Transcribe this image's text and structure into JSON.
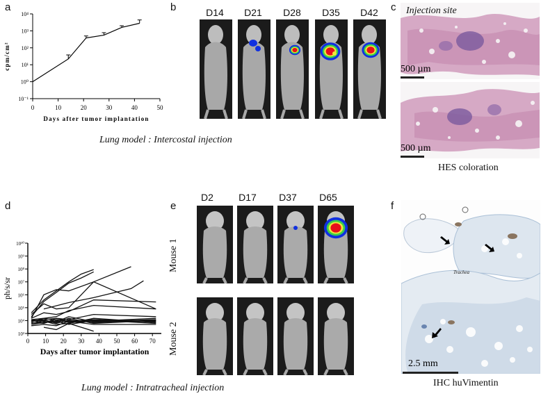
{
  "panels": {
    "a": "a",
    "b": "b",
    "c": "c",
    "d": "d",
    "e": "e",
    "f": "f"
  },
  "captions": {
    "top": "Lung model : Intercostal injection",
    "bottom": "Lung model : Intratracheal injection"
  },
  "panel_b": {
    "days": [
      "D14",
      "D21",
      "D28",
      "D35",
      "D42"
    ]
  },
  "panel_c": {
    "injection_site": "Injection site",
    "scale_top": "500 µm",
    "scale_bottom": "500 µm",
    "stain": "HES coloration"
  },
  "panel_e": {
    "days": [
      "D2",
      "D17",
      "D37",
      "D65"
    ],
    "rows": [
      "Mouse 1",
      "Mouse 2"
    ]
  },
  "panel_f": {
    "trachea": "Trachea",
    "scale": "2.5 mm",
    "stain": "IHC huVimentin"
  },
  "colors": {
    "bio_red": "#e8101a",
    "bio_yellow": "#f1e53a",
    "bio_green": "#3ad04a",
    "bio_blue": "#1030e0",
    "hes_pink": "#c78fb2",
    "hes_purple": "#7b5a9e",
    "ihc_blue": "#a9bfd6"
  },
  "chart_data": [
    {
      "id": "a",
      "type": "line",
      "xlabel": "Days after tumor implantation",
      "ylabel": "cpm/cm²",
      "xlim": [
        0,
        50
      ],
      "ylim_log10": [
        -1,
        4
      ],
      "yscale": "log",
      "xticks": [
        "0",
        "10",
        "20",
        "30",
        "40",
        "50"
      ],
      "yticks": [
        "10⁻¹",
        "10⁰",
        "10¹",
        "10²",
        "10³",
        "10⁴"
      ],
      "x": [
        0,
        14,
        21,
        28,
        35,
        42
      ],
      "y": [
        1,
        22,
        380,
        560,
        1600,
        2800
      ],
      "err_upper": [
        1,
        38,
        500,
        780,
        2000,
        4400
      ]
    },
    {
      "id": "d",
      "type": "line",
      "xlabel": "Days after tumor implantation",
      "ylabel": "ph/s/sr",
      "xlim": [
        0,
        75
      ],
      "ylim_log10": [
        3,
        10
      ],
      "yscale": "log",
      "xticks": [
        "0",
        "10",
        "20",
        "30",
        "40",
        "50",
        "60",
        "70"
      ],
      "yticks": [
        "10³",
        "10⁴",
        "10⁵",
        "10⁶",
        "10⁷",
        "10⁸",
        "10⁹",
        "10¹⁰"
      ],
      "series": [
        {
          "x": [
            2,
            9,
            16,
            23,
            30,
            37
          ],
          "y": [
            40000,
            400000,
            2000000,
            10000000,
            40000000,
            90000000
          ]
        },
        {
          "x": [
            2,
            9,
            16,
            23,
            30,
            37
          ],
          "y": [
            20000,
            300000,
            1500000,
            8000000,
            20000000,
            60000000
          ]
        },
        {
          "x": [
            2,
            9,
            16,
            23,
            37,
            58
          ],
          "y": [
            15000,
            1000000,
            2500000,
            2000000,
            10000000,
            150000000
          ]
        },
        {
          "x": [
            9,
            23,
            37,
            58,
            65
          ],
          "y": [
            80000,
            250000,
            600000,
            3000000,
            12000000
          ]
        },
        {
          "x": [
            2,
            9,
            16,
            23,
            37,
            72
          ],
          "y": [
            30000,
            200000,
            80000,
            100000,
            10000000,
            80000
          ]
        },
        {
          "x": [
            2,
            9,
            16,
            23,
            37,
            72
          ],
          "y": [
            15000,
            40000,
            30000,
            50000,
            400000,
            280000
          ]
        },
        {
          "x": [
            2,
            9,
            16,
            23,
            37,
            72
          ],
          "y": [
            12000,
            15000,
            20000,
            60000,
            150000,
            80000
          ]
        },
        {
          "x": [
            2,
            9,
            16,
            23,
            37,
            72
          ],
          "y": [
            10000,
            12000,
            15000,
            12000,
            30000,
            20000
          ]
        },
        {
          "x": [
            2,
            9,
            16,
            23,
            37,
            72
          ],
          "y": [
            9000,
            10000,
            8000,
            20000,
            8000,
            12000
          ]
        },
        {
          "x": [
            2,
            9,
            16,
            23,
            37,
            72
          ],
          "y": [
            8000,
            15000,
            10000,
            9000,
            12000,
            9000
          ]
        },
        {
          "x": [
            2,
            9,
            16,
            23,
            37,
            72
          ],
          "y": [
            7000,
            6000,
            12000,
            7000,
            9000,
            15000
          ]
        },
        {
          "x": [
            2,
            9,
            16,
            23,
            37,
            72
          ],
          "y": [
            6000,
            9000,
            5000,
            6000,
            15000,
            7000
          ]
        },
        {
          "x": [
            2,
            9,
            16,
            23,
            37,
            72
          ],
          "y": [
            12000,
            8000,
            7000,
            15000,
            6000,
            10000
          ]
        },
        {
          "x": [
            2,
            9,
            16,
            23,
            37,
            72
          ],
          "y": [
            5000,
            7000,
            9000,
            5000,
            10000,
            8000
          ]
        },
        {
          "x": [
            2,
            9,
            16,
            23,
            37,
            72
          ],
          "y": [
            11000,
            6000,
            15000,
            8000,
            11000,
            6000
          ]
        },
        {
          "x": [
            2,
            9,
            16,
            23,
            37,
            72
          ],
          "y": [
            9000,
            12000,
            6000,
            11000,
            7000,
            11000
          ]
        },
        {
          "x": [
            2,
            9,
            16,
            23,
            37,
            72
          ],
          "y": [
            4000,
            5000,
            4000,
            9000,
            5000,
            5000
          ]
        },
        {
          "x": [
            9,
            16,
            23,
            37
          ],
          "y": [
            3000,
            2000,
            6000,
            1500
          ]
        }
      ]
    }
  ]
}
